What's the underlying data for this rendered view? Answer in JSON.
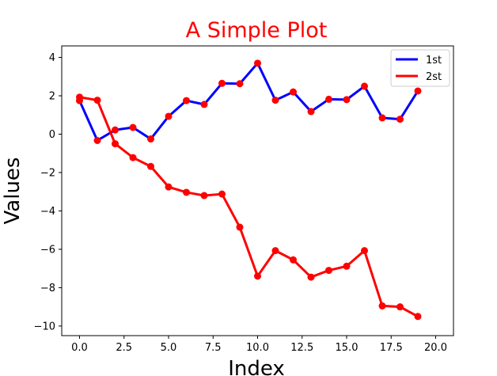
{
  "chart_data": {
    "type": "line",
    "title": "A Simple Plot",
    "title_color": "#ff0000",
    "xlabel": "Index",
    "ylabel": "Values",
    "xlim": [
      -1,
      21
    ],
    "ylim": [
      -10.5,
      4.6
    ],
    "xticks": [
      0,
      2.5,
      5,
      7.5,
      10,
      12.5,
      15,
      17.5,
      20
    ],
    "xtick_labels": [
      "0.0",
      "2.5",
      "5.0",
      "7.5",
      "10.0",
      "12.5",
      "15.0",
      "17.5",
      "20.0"
    ],
    "yticks": [
      -10,
      -8,
      -6,
      -4,
      -2,
      0,
      2,
      4
    ],
    "ytick_labels": [
      "−10",
      "−8",
      "−6",
      "−4",
      "−2",
      "0",
      "2",
      "4"
    ],
    "grid": false,
    "legend_position": "top-right",
    "marker_color": "#ff0000",
    "x": [
      0,
      1,
      2,
      3,
      4,
      5,
      6,
      7,
      8,
      9,
      10,
      11,
      12,
      13,
      14,
      15,
      16,
      17,
      18,
      19
    ],
    "series": [
      {
        "name": "1st",
        "color": "#0000ff",
        "values": [
          1.75,
          -0.33,
          0.22,
          0.35,
          -0.25,
          0.93,
          1.75,
          1.55,
          2.65,
          2.63,
          3.7,
          1.77,
          2.2,
          1.18,
          1.82,
          1.8,
          2.5,
          0.85,
          0.78,
          2.25
        ]
      },
      {
        "name": "2st",
        "color": "#ff0000",
        "values": [
          1.93,
          1.77,
          -0.5,
          -1.22,
          -1.68,
          -2.75,
          -3.03,
          -3.2,
          -3.12,
          -4.85,
          -7.4,
          -6.07,
          -6.55,
          -7.45,
          -7.1,
          -6.88,
          -6.07,
          -8.95,
          -9.0,
          -9.5
        ]
      }
    ]
  }
}
